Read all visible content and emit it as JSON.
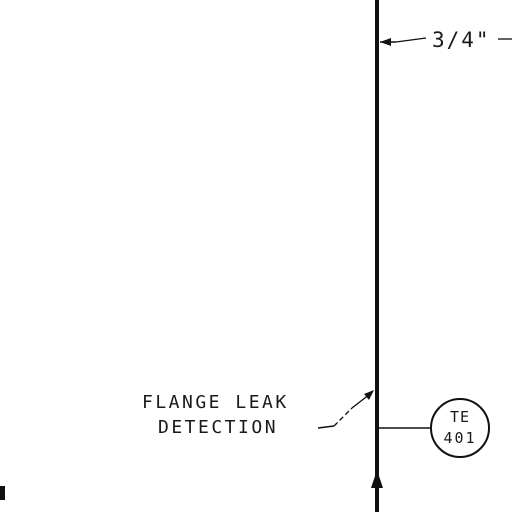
{
  "drawing": {
    "line_size_label": "3/4\"",
    "annotation": {
      "line1": "FLANGE LEAK",
      "line2": "DETECTION"
    },
    "instrument": {
      "tag_letters": "TE",
      "tag_number": "401"
    },
    "colors": {
      "ink": "#111111",
      "paper": "#ffffff"
    }
  }
}
